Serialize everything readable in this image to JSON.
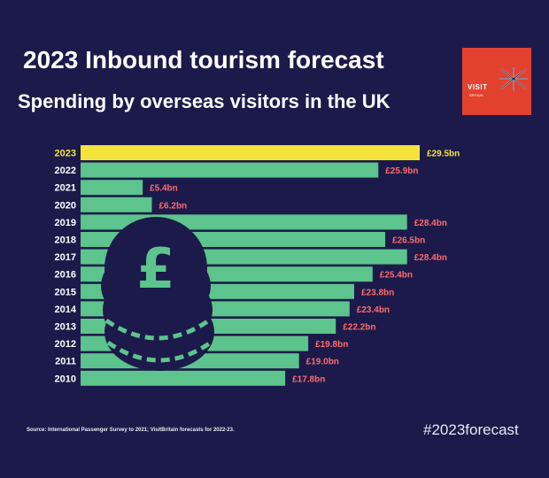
{
  "header": {
    "title": "2023 Inbound tourism forecast",
    "subtitle": "Spending by overseas visitors in the UK"
  },
  "logo": {
    "name": "VISIT",
    "sub": "BRITAIN",
    "bg_color": "#e2412f"
  },
  "colors": {
    "background": "#1c1a4a",
    "bar": "#5cc48c",
    "highlight_bar": "#f3e33a",
    "value_label": "#ff6b6b",
    "highlight_label": "#f3e33a"
  },
  "icon": "pound-coin-stack-icon",
  "chart_data": {
    "type": "bar",
    "orientation": "horizontal",
    "categories": [
      "2023",
      "2022",
      "2021",
      "2020",
      "2019",
      "2018",
      "2017",
      "2016",
      "2015",
      "2014",
      "2013",
      "2012",
      "2011",
      "2010"
    ],
    "values": [
      29.5,
      25.9,
      5.4,
      6.2,
      28.4,
      26.5,
      28.4,
      25.4,
      23.8,
      23.4,
      22.2,
      19.8,
      19.0,
      17.8
    ],
    "labels": [
      "£29.5bn",
      "£25.9bn",
      "£5.4bn",
      "£6.2bn",
      "£28.4bn",
      "£26.5bn",
      "£28.4bn",
      "£25.4bn",
      "£23.8bn",
      "£23.4bn",
      "£22.2bn",
      "£19.8bn",
      "£19.0bn",
      "£17.8bn"
    ],
    "highlight_category": "2023",
    "unit": "£bn",
    "title": "",
    "xlabel": "",
    "ylabel": "",
    "xlim": [
      0,
      29.5
    ],
    "grid": false,
    "legend": "none"
  },
  "footer": {
    "source": "Source: International Passenger Survey to 2021; VisitBritain forecasts for 2022-23.",
    "hashtag": "#2023forecast"
  }
}
